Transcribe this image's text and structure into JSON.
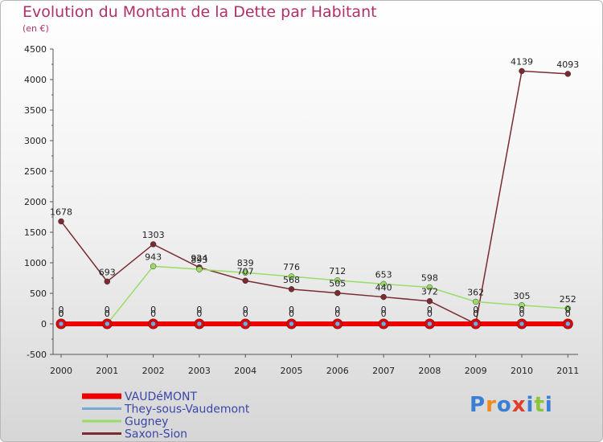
{
  "title": "Evolution du Montant de la Dette par Habitant",
  "subtitle": "(en €)",
  "logo": {
    "text": "Proxiti",
    "colors": [
      "#3a7fd5",
      "#f08a1c",
      "#3a7fd5",
      "#e23c2a",
      "#3a7fd5",
      "#8ac43a",
      "#3a7fd5"
    ]
  },
  "chart_data": {
    "type": "line",
    "x": [
      "2000",
      "2001",
      "2002",
      "2003",
      "2004",
      "2005",
      "2006",
      "2007",
      "2008",
      "2009",
      "2010",
      "2011"
    ],
    "ylim": [
      -500,
      4500
    ],
    "yticks": [
      "-500",
      "0",
      "500",
      "1000",
      "1500",
      "2000",
      "2500",
      "3000",
      "3500",
      "4000",
      "4500"
    ],
    "grid": false,
    "legend_position": "bottom-left",
    "series": [
      {
        "name": "VAUDéMONT",
        "color": "#ee0000",
        "values": [
          0,
          0,
          0,
          0,
          0,
          0,
          0,
          0,
          0,
          0,
          0,
          0
        ],
        "labels": [
          "0",
          "0",
          "0",
          "0",
          "0",
          "0",
          "0",
          "0",
          "0",
          "0",
          "0",
          "0"
        ]
      },
      {
        "name": "They-sous-Vaudemont",
        "color": "#7aa8d8",
        "values": [
          0,
          0,
          0,
          0,
          0,
          0,
          0,
          0,
          0,
          0,
          0,
          0
        ],
        "labels": [
          "0",
          "0",
          "0",
          "0",
          "0",
          "0",
          "0",
          "0",
          "0",
          "0",
          "0",
          "0"
        ]
      },
      {
        "name": "Gugney",
        "color": "#99dd66",
        "values": [
          0,
          0,
          943,
          893,
          839,
          776,
          712,
          653,
          598,
          362,
          305,
          252
        ],
        "labels": [
          "0",
          "0",
          "943",
          "893",
          "839",
          "776",
          "712",
          "653",
          "598",
          "362",
          "305",
          "252"
        ]
      },
      {
        "name": "Saxon-Sion",
        "color": "#7a2a30",
        "values": [
          1678,
          693,
          1303,
          924,
          707,
          568,
          505,
          440,
          372,
          0,
          4139,
          4093
        ],
        "labels": [
          "1678",
          "693",
          "1303",
          "924",
          "707",
          "568",
          "505",
          "440",
          "372",
          "0",
          "4139",
          "4093"
        ]
      }
    ]
  }
}
